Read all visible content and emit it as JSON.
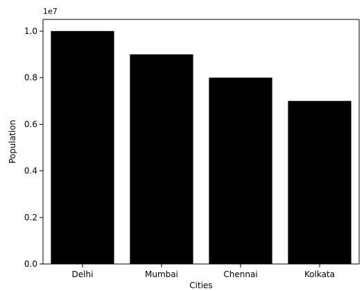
{
  "chart_data": {
    "type": "bar",
    "title": "",
    "xlabel": "Cities",
    "ylabel": "Population",
    "y_offset_label": "1e7",
    "categories": [
      "Delhi",
      "Mumbai",
      "Chennai",
      "Kolkata"
    ],
    "values": [
      10000000,
      9000000,
      8000000,
      7000000
    ],
    "ylim": [
      0,
      10500000
    ],
    "yticks": [
      0,
      2000000,
      4000000,
      6000000,
      8000000,
      10000000
    ],
    "ytick_labels": [
      "0.0",
      "0.2",
      "0.4",
      "0.6",
      "0.8",
      "1.0"
    ],
    "bar_color": "#000000",
    "grid": false,
    "legend": "none"
  }
}
